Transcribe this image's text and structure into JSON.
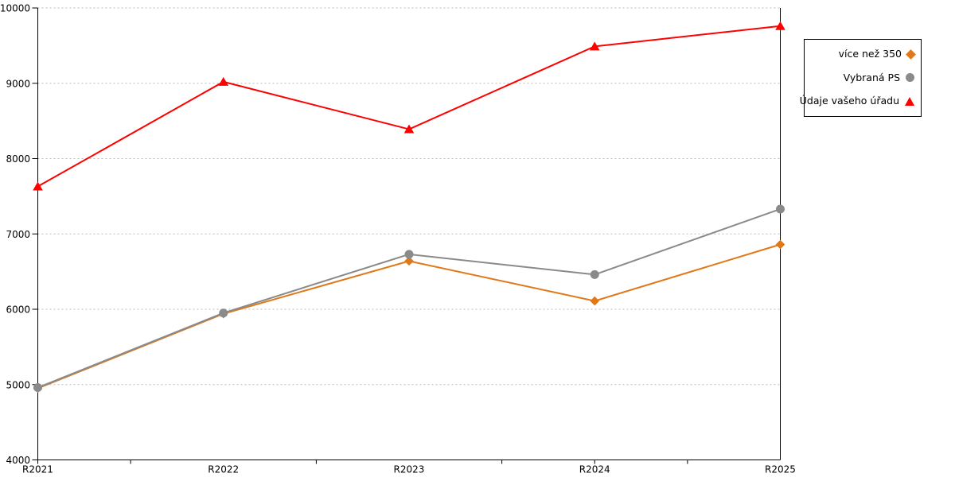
{
  "chart_data": {
    "type": "line",
    "title": "",
    "xlabel": "",
    "ylabel": "",
    "categories": [
      "R2021",
      "R2022",
      "R2023",
      "R2024",
      "R2025"
    ],
    "series": [
      {
        "name": "více než 350",
        "marker": "diamond",
        "color": "#E07818",
        "values": [
          4950,
          5940,
          6640,
          6110,
          6860
        ]
      },
      {
        "name": "Vybraná PS",
        "marker": "circle",
        "color": "#8A8A8A",
        "values": [
          4960,
          5950,
          6730,
          6460,
          7330
        ]
      },
      {
        "name": "Údaje vašeho úřadu",
        "marker": "triangle",
        "color": "#FF0000",
        "values": [
          7630,
          9020,
          8390,
          9490,
          9760
        ]
      }
    ],
    "ylim": [
      4000,
      10000
    ],
    "yticks": [
      4000,
      5000,
      6000,
      7000,
      8000,
      9000,
      10000
    ],
    "grid": "horizontal-dotted",
    "grid_color": "#BBBBBB",
    "axis_color": "#000000",
    "legend_position": "right",
    "legend_order": [
      "více než 350",
      "Vybraná PS",
      "Údaje vašeho úřadu"
    ]
  }
}
